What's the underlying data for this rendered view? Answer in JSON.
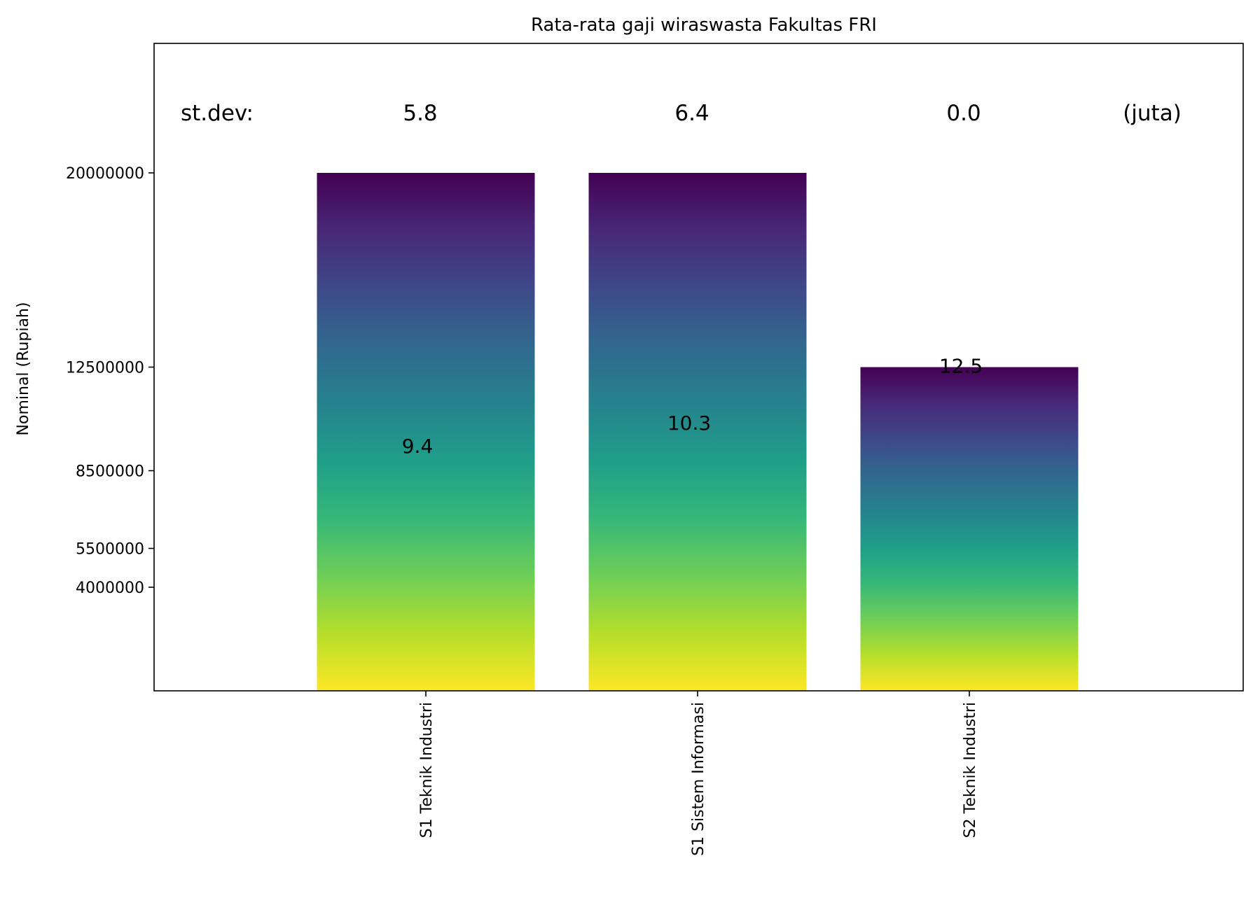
{
  "chart_data": {
    "type": "bar",
    "title": "Rata-rata gaji wiraswasta Fakultas FRI",
    "xlabel": "",
    "ylabel": "Nominal (Rupiah)",
    "categories": [
      "S1 Teknik Industri",
      "S1 Sistem Informasi",
      "S2 Teknik Industri"
    ],
    "values": [
      20000000,
      20000000,
      12500000
    ],
    "bar_labels": [
      "9.4",
      "10.3",
      "12.5"
    ],
    "bar_label_y": [
      9400000,
      10300000,
      12500000
    ],
    "yticks": [
      4000000,
      5500000,
      8500000,
      12500000,
      20000000
    ],
    "ytick_labels": [
      "4000000",
      "5500000",
      "8500000",
      "12500000",
      "20000000"
    ],
    "ylim": [
      0,
      25000000
    ],
    "stdev": {
      "label": "st.dev:",
      "values": [
        "5.8",
        "6.4",
        "0.0"
      ],
      "unit": "(juta)"
    },
    "colormap": "viridis",
    "colormap_stops": [
      "#440154",
      "#482878",
      "#3e4989",
      "#31688e",
      "#26828e",
      "#1f9e89",
      "#35b779",
      "#6ece58",
      "#b5de2b",
      "#fde725"
    ],
    "grid": false,
    "legend": "none"
  }
}
